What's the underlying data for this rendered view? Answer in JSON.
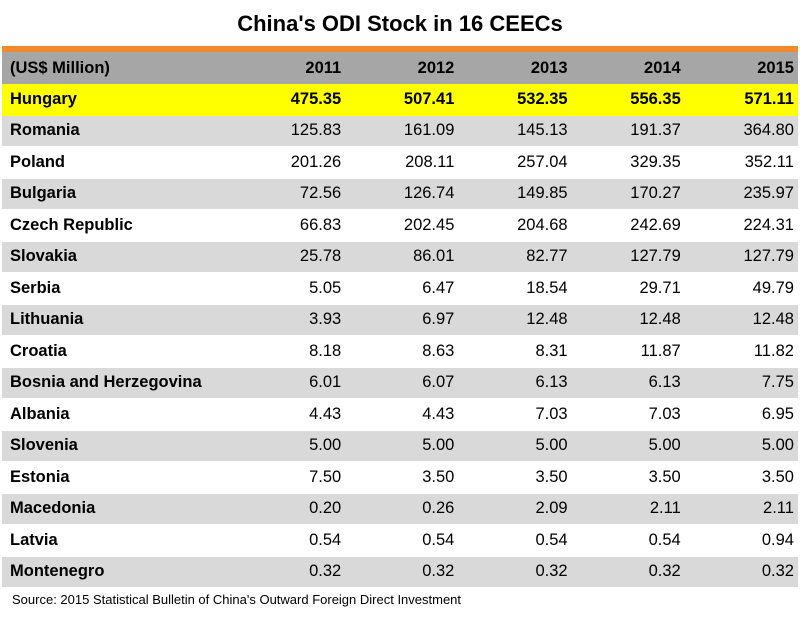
{
  "title": "China's ODI Stock in 16 CEECs",
  "accent_color": "#f08a2a",
  "highlight_color": "#ffff00",
  "header": [
    "(US$ Million)",
    "2011",
    "2012",
    "2013",
    "2014",
    "2015"
  ],
  "source": "Source: 2015 Statistical Bulletin of China's Outward Foreign Direct Investment",
  "chart_data": {
    "type": "table",
    "title": "China's ODI Stock in 16 CEECs",
    "columns": [
      "(US$ Million)",
      "2011",
      "2012",
      "2013",
      "2014",
      "2015"
    ],
    "rows": [
      [
        "Hungary",
        "475.35",
        "507.41",
        "532.35",
        "556.35",
        "571.11"
      ],
      [
        "Romania",
        "125.83",
        "161.09",
        "145.13",
        "191.37",
        "364.80"
      ],
      [
        "Poland",
        "201.26",
        "208.11",
        "257.04",
        "329.35",
        "352.11"
      ],
      [
        "Bulgaria",
        "72.56",
        "126.74",
        "149.85",
        "170.27",
        "235.97"
      ],
      [
        "Czech Republic",
        "66.83",
        "202.45",
        "204.68",
        "242.69",
        "224.31"
      ],
      [
        "Slovakia",
        "25.78",
        "86.01",
        "82.77",
        "127.79",
        "127.79"
      ],
      [
        "Serbia",
        "5.05",
        "6.47",
        "18.54",
        "29.71",
        "49.79"
      ],
      [
        "Lithuania",
        "3.93",
        "6.97",
        "12.48",
        "12.48",
        "12.48"
      ],
      [
        "Croatia",
        "8.18",
        "8.63",
        "8.31",
        "11.87",
        "11.82"
      ],
      [
        "Bosnia and Herzegovina",
        "6.01",
        "6.07",
        "6.13",
        "6.13",
        "7.75"
      ],
      [
        "Albania",
        "4.43",
        "4.43",
        "7.03",
        "7.03",
        "6.95"
      ],
      [
        "Slovenia",
        "5.00",
        "5.00",
        "5.00",
        "5.00",
        "5.00"
      ],
      [
        "Estonia",
        "7.50",
        "3.50",
        "3.50",
        "3.50",
        "3.50"
      ],
      [
        "Macedonia",
        "0.20",
        "0.26",
        "2.09",
        "2.11",
        "2.11"
      ],
      [
        "Latvia",
        "0.54",
        "0.54",
        "0.54",
        "0.54",
        "0.94"
      ],
      [
        "Montenegro",
        "0.32",
        "0.32",
        "0.32",
        "0.32",
        "0.32"
      ]
    ]
  }
}
